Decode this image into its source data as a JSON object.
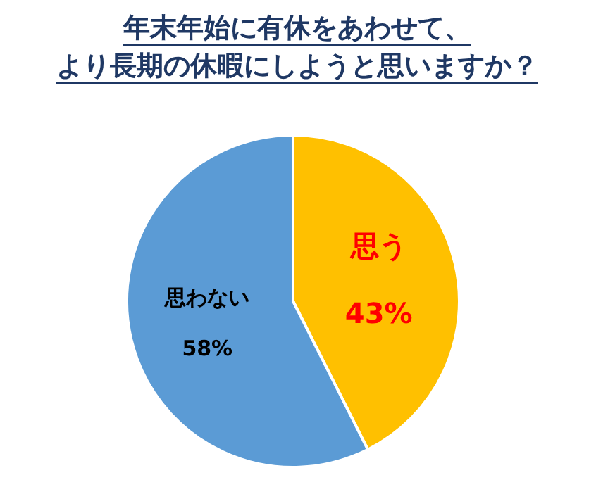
{
  "chart_data": {
    "type": "pie",
    "title": "年末年始に有休をあわせて、より長期の休暇にしようと思いますか？",
    "categories": [
      "思う",
      "思わない"
    ],
    "values": [
      43,
      58
    ],
    "value_labels": [
      "43%",
      "58%"
    ],
    "colors": [
      "#ffc000",
      "#5b9bd5"
    ],
    "legend": false
  }
}
